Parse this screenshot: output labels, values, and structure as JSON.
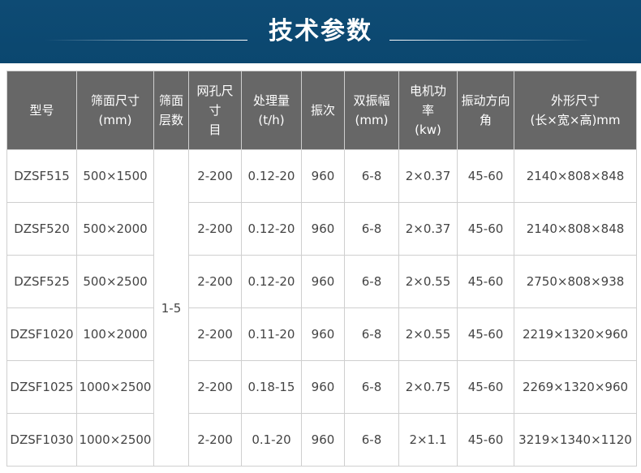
{
  "banner": {
    "title": "技术参数"
  },
  "table": {
    "headers": [
      [
        "型号"
      ],
      [
        "筛面尺寸",
        "(mm)"
      ],
      [
        "筛面",
        "层数"
      ],
      [
        "网孔尺",
        "寸",
        "目"
      ],
      [
        "处理量",
        "(t/h)"
      ],
      [
        "振次"
      ],
      [
        "双振幅",
        "(mm)"
      ],
      [
        "电机功",
        "率",
        "(kw)"
      ],
      [
        "振动方向",
        "角"
      ],
      [
        "外形尺寸",
        "(长×宽×高)mm"
      ]
    ],
    "layers": "1-5",
    "rows": [
      [
        "DZSF515",
        "500×1500",
        "2-200",
        "0.12-20",
        "960",
        "6-8",
        "2×0.37",
        "45-60",
        "2140×808×848"
      ],
      [
        "DZSF520",
        "500×2000",
        "2-200",
        "0.12-20",
        "960",
        "6-8",
        "2×0.37",
        "45-60",
        "2140×808×848"
      ],
      [
        "DZSF525",
        "500×2500",
        "2-200",
        "0.12-20",
        "960",
        "6-8",
        "2×0.55",
        "45-60",
        "2750×808×938"
      ],
      [
        "DZSF1020",
        "100×2000",
        "2-200",
        "0.11-20",
        "960",
        "6-8",
        "2×0.55",
        "45-60",
        "2219×1320×960"
      ],
      [
        "DZSF1025",
        "1000×2500",
        "2-200",
        "0.18-15",
        "960",
        "6-8",
        "2×0.75",
        "45-60",
        "2269×1320×960"
      ],
      [
        "DZSF1030",
        "1000×2500",
        "2-200",
        "0.1-20",
        "960",
        "6-8",
        "2×1.1",
        "45-60",
        "3219×1340×1120"
      ]
    ]
  }
}
